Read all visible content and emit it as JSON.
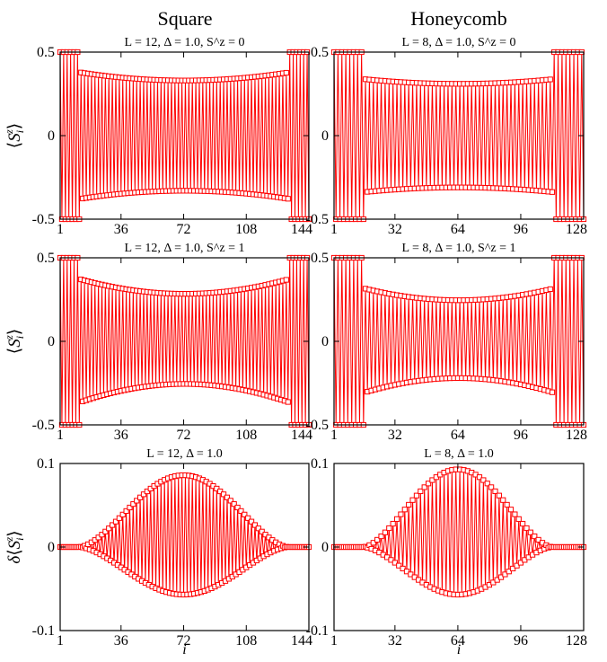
{
  "column_titles": [
    "Square",
    "Honeycomb"
  ],
  "colors": {
    "series": "#ff0000",
    "frame": "#000000",
    "background": "#ffffff"
  },
  "ylabels": {
    "row1": "⟨S_i^z⟩",
    "row2": "⟨S_i^z⟩",
    "row3": "δ⟨S_i^z⟩"
  },
  "xlabel": "i",
  "chart_data": [
    {
      "type": "line",
      "panel": "square-row1",
      "title": "L = 12, Δ = 1.0, S^z = 0",
      "N": 144,
      "xlim": [
        1,
        144
      ],
      "ylim": [
        -0.5,
        0.5
      ],
      "xticks": [
        1,
        36,
        72,
        108,
        144
      ],
      "xticklabels": [
        "1",
        "36",
        "72",
        "108",
        "144"
      ],
      "yticks": [
        -0.5,
        0,
        0.5
      ],
      "yticklabels": [
        "-0.5",
        "0",
        "0.5"
      ],
      "edge_sites": 12,
      "envelope_edge": 0.4,
      "envelope_center": 0.33,
      "envelope_asym": 0,
      "series": "alternating staggered magnetization ⟨S_i^z⟩ vs site i"
    },
    {
      "type": "line",
      "panel": "honeycomb-row1",
      "title": "L = 8, Δ = 1.0, S^z = 0",
      "N": 128,
      "xlim": [
        1,
        128
      ],
      "ylim": [
        -0.5,
        0.5
      ],
      "xticks": [
        1,
        32,
        64,
        96,
        128
      ],
      "xticklabels": [
        "1",
        "32",
        "64",
        "96",
        "128"
      ],
      "yticks": [
        -0.5,
        0,
        0.5
      ],
      "yticklabels": [
        "-0.5",
        "0",
        "0.5"
      ],
      "edge_sites": 16,
      "envelope_edge": 0.36,
      "envelope_center": 0.31,
      "envelope_asym": 0,
      "series": "alternating staggered magnetization ⟨S_i^z⟩ vs site i"
    },
    {
      "type": "line",
      "panel": "square-row2",
      "title": "L = 12, Δ = 1.0, S^z = 1",
      "N": 144,
      "xlim": [
        1,
        144
      ],
      "ylim": [
        -0.5,
        0.5
      ],
      "xticks": [
        1,
        36,
        72,
        108,
        144
      ],
      "xticklabels": [
        "1",
        "36",
        "72",
        "108",
        "144"
      ],
      "yticks": [
        -0.5,
        0,
        0.5
      ],
      "yticklabels": [
        "-0.5",
        "0",
        "0.5"
      ],
      "edge_sites": 12,
      "envelope_edge": 0.41,
      "envelope_center": 0.3,
      "envelope_asym": 0.045,
      "series": "alternating staggered magnetization ⟨S_i^z⟩ vs site i"
    },
    {
      "type": "line",
      "panel": "honeycomb-row2",
      "title": "L = 8, Δ = 1.0, S^z = 1",
      "N": 128,
      "xlim": [
        1,
        128
      ],
      "ylim": [
        -0.5,
        0.5
      ],
      "xticks": [
        1,
        32,
        64,
        96,
        128
      ],
      "xticklabels": [
        "1",
        "32",
        "64",
        "96",
        "128"
      ],
      "yticks": [
        -0.5,
        0,
        0.5
      ],
      "yticklabels": [
        "-0.5",
        "0",
        "0.5"
      ],
      "edge_sites": 16,
      "envelope_edge": 0.37,
      "envelope_center": 0.26,
      "envelope_asym": 0.04,
      "series": "alternating staggered magnetization ⟨S_i^z⟩ vs site i"
    },
    {
      "type": "line",
      "panel": "square-row3",
      "title": "L = 12, Δ = 1.0",
      "N": 144,
      "xlim": [
        1,
        144
      ],
      "ylim": [
        -0.1,
        0.1
      ],
      "xticks": [
        1,
        36,
        72,
        108,
        144
      ],
      "xticklabels": [
        "1",
        "36",
        "72",
        "108",
        "144"
      ],
      "yticks": [
        -0.1,
        0,
        0.1
      ],
      "yticklabels": [
        "-0.1",
        "0",
        "0.1"
      ],
      "active_range": [
        12,
        132
      ],
      "peak_upper": 0.086,
      "peak_lower": -0.057,
      "peak_center": 72,
      "series": "difference δ⟨S_i^z⟩ between S^z=1 and S^z=0 vs site i"
    },
    {
      "type": "line",
      "panel": "honeycomb-row3",
      "title": "L = 8, Δ = 1.0",
      "N": 128,
      "xlim": [
        1,
        128
      ],
      "ylim": [
        -0.1,
        0.1
      ],
      "xticks": [
        1,
        32,
        64,
        96,
        128
      ],
      "xticklabels": [
        "1",
        "32",
        "64",
        "96",
        "128"
      ],
      "yticks": [
        -0.1,
        0,
        0.1
      ],
      "yticklabels": [
        "-0.1",
        "0",
        "0.1"
      ],
      "active_range": [
        16,
        112
      ],
      "peak_upper": 0.093,
      "peak_lower": -0.057,
      "peak_center": 64,
      "series": "difference δ⟨S_i^z⟩ between S^z=1 and S^z=0 vs site i"
    }
  ]
}
